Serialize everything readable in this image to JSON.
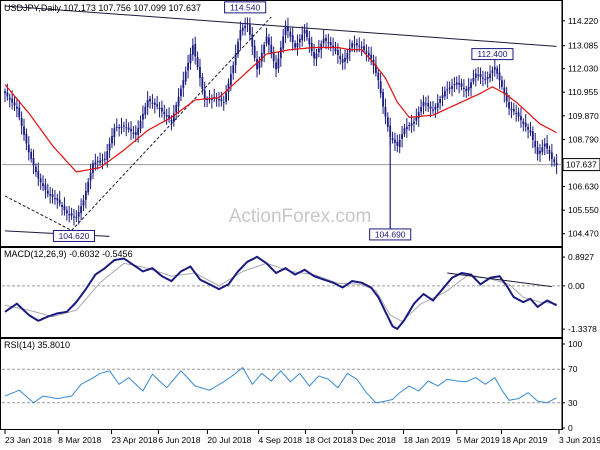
{
  "chart_data": [
    {
      "panel": "price",
      "type": "candlestick",
      "header": "USDJPY,Daily  107.173 107.756 107.099 107.637",
      "watermark": "ActionForex.com",
      "ylim": [
        104.0,
        114.9
      ],
      "y_ticks": [
        "114.220",
        "113.085",
        "112.030",
        "110.955",
        "109.870",
        "108.790",
        "107.637",
        "106.630",
        "105.550",
        "104.470"
      ],
      "y_tick_values": [
        114.22,
        113.085,
        112.03,
        110.955,
        109.87,
        108.79,
        107.637,
        106.63,
        105.55,
        104.47
      ],
      "current_price": {
        "label": "107.637",
        "value": 107.637
      },
      "annotations": [
        {
          "label": "114.540",
          "value": 114.54,
          "bar": 101
        },
        {
          "label": "112.400",
          "value": 112.4,
          "bar": 205
        },
        {
          "label": "104.620",
          "value": 104.62,
          "bar": 29
        },
        {
          "label": "104.690",
          "value": 104.69,
          "bar": 162
        }
      ],
      "series": [
        {
          "name": "close",
          "color": "#1a1a80"
        },
        {
          "name": "moving-average",
          "color": "#e01010"
        }
      ],
      "knots": [
        [
          0,
          110.9
        ],
        [
          5,
          110.2
        ],
        [
          10,
          108.2
        ],
        [
          14,
          107.0
        ],
        [
          18,
          106.3
        ],
        [
          22,
          106.0
        ],
        [
          26,
          105.4
        ],
        [
          30,
          105.2
        ],
        [
          33,
          106.0
        ],
        [
          37,
          107.7
        ],
        [
          42,
          107.9
        ],
        [
          46,
          109.3
        ],
        [
          50,
          109.4
        ],
        [
          55,
          109.0
        ],
        [
          60,
          110.6
        ],
        [
          64,
          110.3
        ],
        [
          70,
          109.6
        ],
        [
          75,
          111.5
        ],
        [
          79,
          113.1
        ],
        [
          84,
          110.6
        ],
        [
          88,
          110.7
        ],
        [
          92,
          110.5
        ],
        [
          96,
          112.2
        ],
        [
          99,
          113.8
        ],
        [
          102,
          114.1
        ],
        [
          106,
          112.0
        ],
        [
          110,
          113.5
        ],
        [
          114,
          112.0
        ],
        [
          118,
          114.0
        ],
        [
          122,
          113.0
        ],
        [
          126,
          113.8
        ],
        [
          130,
          112.5
        ],
        [
          134,
          113.4
        ],
        [
          138,
          113.0
        ],
        [
          142,
          112.3
        ],
        [
          146,
          113.2
        ],
        [
          150,
          113.0
        ],
        [
          154,
          112.5
        ],
        [
          157,
          111.5
        ],
        [
          159,
          110.3
        ],
        [
          162,
          108.9
        ],
        [
          165,
          108.5
        ],
        [
          168,
          109.3
        ],
        [
          172,
          109.6
        ],
        [
          176,
          110.5
        ],
        [
          180,
          110.1
        ],
        [
          185,
          111.0
        ],
        [
          190,
          111.4
        ],
        [
          194,
          111.0
        ],
        [
          198,
          111.8
        ],
        [
          202,
          111.5
        ],
        [
          206,
          112.1
        ],
        [
          209,
          111.2
        ],
        [
          212,
          110.2
        ],
        [
          215,
          110.0
        ],
        [
          218,
          109.5
        ],
        [
          221,
          109.1
        ],
        [
          224,
          108.1
        ],
        [
          227,
          108.6
        ],
        [
          230,
          107.9
        ],
        [
          232,
          107.6
        ]
      ],
      "ma_knots": [
        [
          0,
          111.3
        ],
        [
          10,
          110.0
        ],
        [
          20,
          108.5
        ],
        [
          30,
          107.3
        ],
        [
          40,
          107.5
        ],
        [
          50,
          108.3
        ],
        [
          60,
          109.2
        ],
        [
          70,
          109.8
        ],
        [
          80,
          110.6
        ],
        [
          90,
          110.7
        ],
        [
          100,
          111.7
        ],
        [
          110,
          112.7
        ],
        [
          120,
          112.9
        ],
        [
          130,
          113.0
        ],
        [
          140,
          113.0
        ],
        [
          145,
          112.9
        ],
        [
          150,
          112.9
        ],
        [
          155,
          112.3
        ],
        [
          160,
          111.6
        ],
        [
          165,
          110.5
        ],
        [
          170,
          109.8
        ],
        [
          180,
          109.9
        ],
        [
          190,
          110.4
        ],
        [
          200,
          110.9
        ],
        [
          205,
          111.2
        ],
        [
          210,
          110.9
        ],
        [
          215,
          110.5
        ],
        [
          220,
          110.0
        ],
        [
          225,
          109.5
        ],
        [
          232,
          109.1
        ]
      ],
      "trendlines": [
        {
          "from": [
            0,
            114.9
          ],
          "to": [
            232,
            113.05
          ],
          "color": "#1a1a3a"
        },
        {
          "from": [
            0,
            104.6
          ],
          "to": [
            44,
            104.35
          ],
          "color": "#1a1a3a"
        },
        {
          "from": [
            0,
            106.2
          ],
          "to": [
            28,
            104.62
          ],
          "color": "#1a1a3a",
          "dashed": true
        },
        {
          "from": [
            28,
            104.62
          ],
          "to": [
            112,
            114.4
          ],
          "color": "#1a1a3a",
          "dashed": true
        }
      ]
    },
    {
      "panel": "macd",
      "type": "line",
      "header": "MACD(12,26,9) -0.6032 -0.5456",
      "ylim": [
        -1.55,
        1.05
      ],
      "y_ticks": [
        "0.8927",
        "0.00",
        "-1.3378"
      ],
      "y_tick_values": [
        0.8927,
        0.0,
        -1.3378
      ],
      "series": [
        {
          "name": "macd",
          "color": "#1a1a80"
        },
        {
          "name": "signal",
          "color": "#a8a8b0"
        }
      ],
      "knots": [
        [
          0,
          -0.8
        ],
        [
          5,
          -0.55
        ],
        [
          10,
          -0.9
        ],
        [
          14,
          -1.08
        ],
        [
          18,
          -0.95
        ],
        [
          22,
          -0.85
        ],
        [
          26,
          -0.8
        ],
        [
          30,
          -0.5
        ],
        [
          34,
          -0.1
        ],
        [
          38,
          0.35
        ],
        [
          42,
          0.55
        ],
        [
          46,
          0.8
        ],
        [
          50,
          0.85
        ],
        [
          54,
          0.65
        ],
        [
          58,
          0.45
        ],
        [
          62,
          0.55
        ],
        [
          66,
          0.3
        ],
        [
          70,
          0.15
        ],
        [
          74,
          0.45
        ],
        [
          78,
          0.6
        ],
        [
          82,
          0.2
        ],
        [
          86,
          0.05
        ],
        [
          90,
          -0.1
        ],
        [
          94,
          0.05
        ],
        [
          98,
          0.45
        ],
        [
          102,
          0.75
        ],
        [
          106,
          0.9
        ],
        [
          110,
          0.7
        ],
        [
          114,
          0.4
        ],
        [
          118,
          0.55
        ],
        [
          122,
          0.35
        ],
        [
          126,
          0.5
        ],
        [
          130,
          0.3
        ],
        [
          134,
          0.2
        ],
        [
          138,
          0.1
        ],
        [
          142,
          -0.05
        ],
        [
          146,
          0.15
        ],
        [
          150,
          0.1
        ],
        [
          154,
          -0.05
        ],
        [
          157,
          -0.35
        ],
        [
          160,
          -0.8
        ],
        [
          163,
          -1.25
        ],
        [
          165,
          -1.33
        ],
        [
          168,
          -1.05
        ],
        [
          172,
          -0.55
        ],
        [
          176,
          -0.25
        ],
        [
          180,
          -0.45
        ],
        [
          184,
          -0.1
        ],
        [
          188,
          0.25
        ],
        [
          192,
          0.4
        ],
        [
          196,
          0.35
        ],
        [
          200,
          0.05
        ],
        [
          204,
          0.25
        ],
        [
          208,
          0.3
        ],
        [
          211,
          0.0
        ],
        [
          214,
          -0.35
        ],
        [
          218,
          -0.5
        ],
        [
          221,
          -0.4
        ],
        [
          224,
          -0.65
        ],
        [
          228,
          -0.45
        ],
        [
          232,
          -0.6
        ]
      ],
      "signal_knots": [
        [
          0,
          -0.6
        ],
        [
          10,
          -0.75
        ],
        [
          20,
          -0.95
        ],
        [
          30,
          -0.75
        ],
        [
          40,
          0.1
        ],
        [
          50,
          0.7
        ],
        [
          60,
          0.55
        ],
        [
          70,
          0.3
        ],
        [
          80,
          0.4
        ],
        [
          90,
          0.0
        ],
        [
          100,
          0.45
        ],
        [
          110,
          0.7
        ],
        [
          120,
          0.45
        ],
        [
          130,
          0.35
        ],
        [
          140,
          0.08
        ],
        [
          150,
          0.05
        ],
        [
          156,
          -0.15
        ],
        [
          162,
          -0.9
        ],
        [
          167,
          -1.1
        ],
        [
          175,
          -0.55
        ],
        [
          185,
          -0.2
        ],
        [
          195,
          0.35
        ],
        [
          205,
          0.2
        ],
        [
          212,
          0.05
        ],
        [
          218,
          -0.35
        ],
        [
          225,
          -0.5
        ],
        [
          232,
          -0.55
        ]
      ],
      "trendlines": [
        {
          "from": [
            186,
            0.4
          ],
          "to": [
            230,
            -0.02
          ],
          "color": "#1a1a3a"
        }
      ]
    },
    {
      "panel": "rsi",
      "type": "line",
      "header": "RSI(14) 35.8010",
      "ylim": [
        0,
        100
      ],
      "y_ticks": [
        "100",
        "70",
        "30",
        "0"
      ],
      "y_tick_values": [
        100,
        70,
        30,
        0
      ],
      "series": [
        {
          "name": "rsi",
          "color": "#3a8ad0"
        }
      ],
      "knots": [
        [
          0,
          38
        ],
        [
          6,
          45
        ],
        [
          12,
          30
        ],
        [
          16,
          38
        ],
        [
          22,
          35
        ],
        [
          28,
          38
        ],
        [
          32,
          52
        ],
        [
          36,
          58
        ],
        [
          40,
          65
        ],
        [
          44,
          68
        ],
        [
          48,
          52
        ],
        [
          52,
          60
        ],
        [
          58,
          44
        ],
        [
          62,
          64
        ],
        [
          68,
          48
        ],
        [
          74,
          68
        ],
        [
          80,
          50
        ],
        [
          86,
          45
        ],
        [
          92,
          55
        ],
        [
          96,
          63
        ],
        [
          100,
          72
        ],
        [
          104,
          52
        ],
        [
          108,
          65
        ],
        [
          112,
          56
        ],
        [
          116,
          68
        ],
        [
          120,
          55
        ],
        [
          124,
          65
        ],
        [
          128,
          50
        ],
        [
          132,
          62
        ],
        [
          136,
          58
        ],
        [
          140,
          48
        ],
        [
          144,
          65
        ],
        [
          148,
          58
        ],
        [
          152,
          42
        ],
        [
          156,
          30
        ],
        [
          160,
          32
        ],
        [
          163,
          34
        ],
        [
          166,
          42
        ],
        [
          170,
          50
        ],
        [
          174,
          44
        ],
        [
          178,
          56
        ],
        [
          182,
          50
        ],
        [
          186,
          58
        ],
        [
          190,
          56
        ],
        [
          194,
          55
        ],
        [
          198,
          60
        ],
        [
          202,
          52
        ],
        [
          206,
          60
        ],
        [
          209,
          45
        ],
        [
          212,
          33
        ],
        [
          216,
          35
        ],
        [
          220,
          42
        ],
        [
          224,
          32
        ],
        [
          228,
          30
        ],
        [
          232,
          36
        ]
      ]
    },
    {
      "panel": "x-axis",
      "type": "labels",
      "bar_count": 233,
      "labels": [
        {
          "text": "23 Jan 2018",
          "bar": 0
        },
        {
          "text": "8 Mar 2018",
          "bar": 25
        },
        {
          "text": "23 Apr 2018",
          "bar": 50
        },
        {
          "text": "6 Jun 2018",
          "bar": 72
        },
        {
          "text": "20 Jul 2018",
          "bar": 95
        },
        {
          "text": "4 Sep 2018",
          "bar": 119
        },
        {
          "text": "18 Oct 2018",
          "bar": 141
        },
        {
          "text": "3 Dec 2018",
          "bar": 163
        },
        {
          "text": "18 Jan 2019",
          "bar": 187
        },
        {
          "text": "5 Mar 2019",
          "bar": 212
        },
        {
          "text": "18 Apr 2019",
          "bar": 233
        },
        {
          "text": "3 Jun 2019",
          "bar": 260
        }
      ]
    }
  ]
}
